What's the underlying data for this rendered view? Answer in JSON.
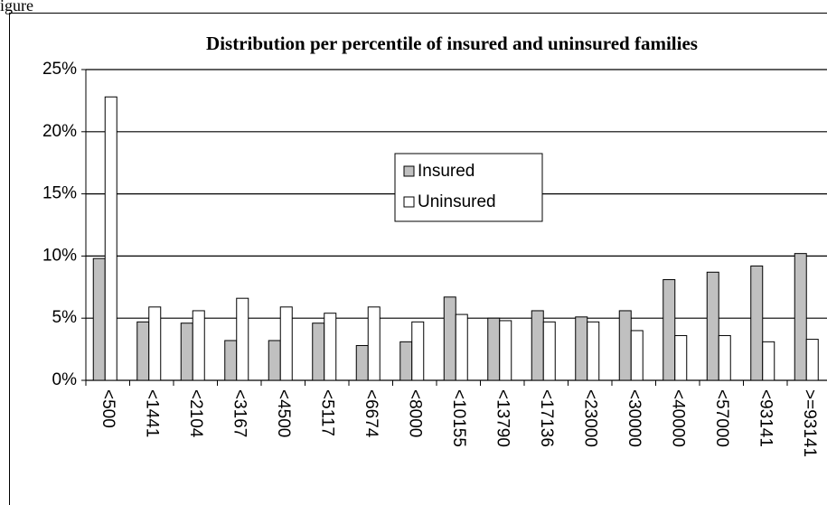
{
  "caption": "igure",
  "chart_data": {
    "type": "bar",
    "title": "Distribution per percentile of insured and uninsured families",
    "categories": [
      "<500",
      "<1441",
      "<2104",
      "<3167",
      "<4500",
      "<5117",
      "<6674",
      "<8000",
      "<10155",
      "<13790",
      "<17136",
      "<23000",
      "<30000",
      "<40000",
      "<57000",
      "<93141",
      ">=93141"
    ],
    "series": [
      {
        "name": "Insured",
        "color": "#c0c0c0",
        "values": [
          9.8,
          4.7,
          4.6,
          3.2,
          3.2,
          4.6,
          2.8,
          3.1,
          6.7,
          5.0,
          5.6,
          5.1,
          5.6,
          8.1,
          8.7,
          9.2,
          10.2
        ]
      },
      {
        "name": "Uninsured",
        "color": "#ffffff",
        "values": [
          22.8,
          5.9,
          5.6,
          6.6,
          5.9,
          5.4,
          5.9,
          4.7,
          5.3,
          4.8,
          4.7,
          4.7,
          4.0,
          3.6,
          3.6,
          3.1,
          3.3
        ]
      }
    ],
    "ylim": [
      0,
      25
    ],
    "yticks": [
      {
        "value": 0,
        "label": "0%"
      },
      {
        "value": 5,
        "label": "5%"
      },
      {
        "value": 10,
        "label": "10%"
      },
      {
        "value": 15,
        "label": "15%"
      },
      {
        "value": 20,
        "label": "20%"
      },
      {
        "value": 25,
        "label": "25%"
      }
    ],
    "grid": true,
    "legend": "center"
  }
}
